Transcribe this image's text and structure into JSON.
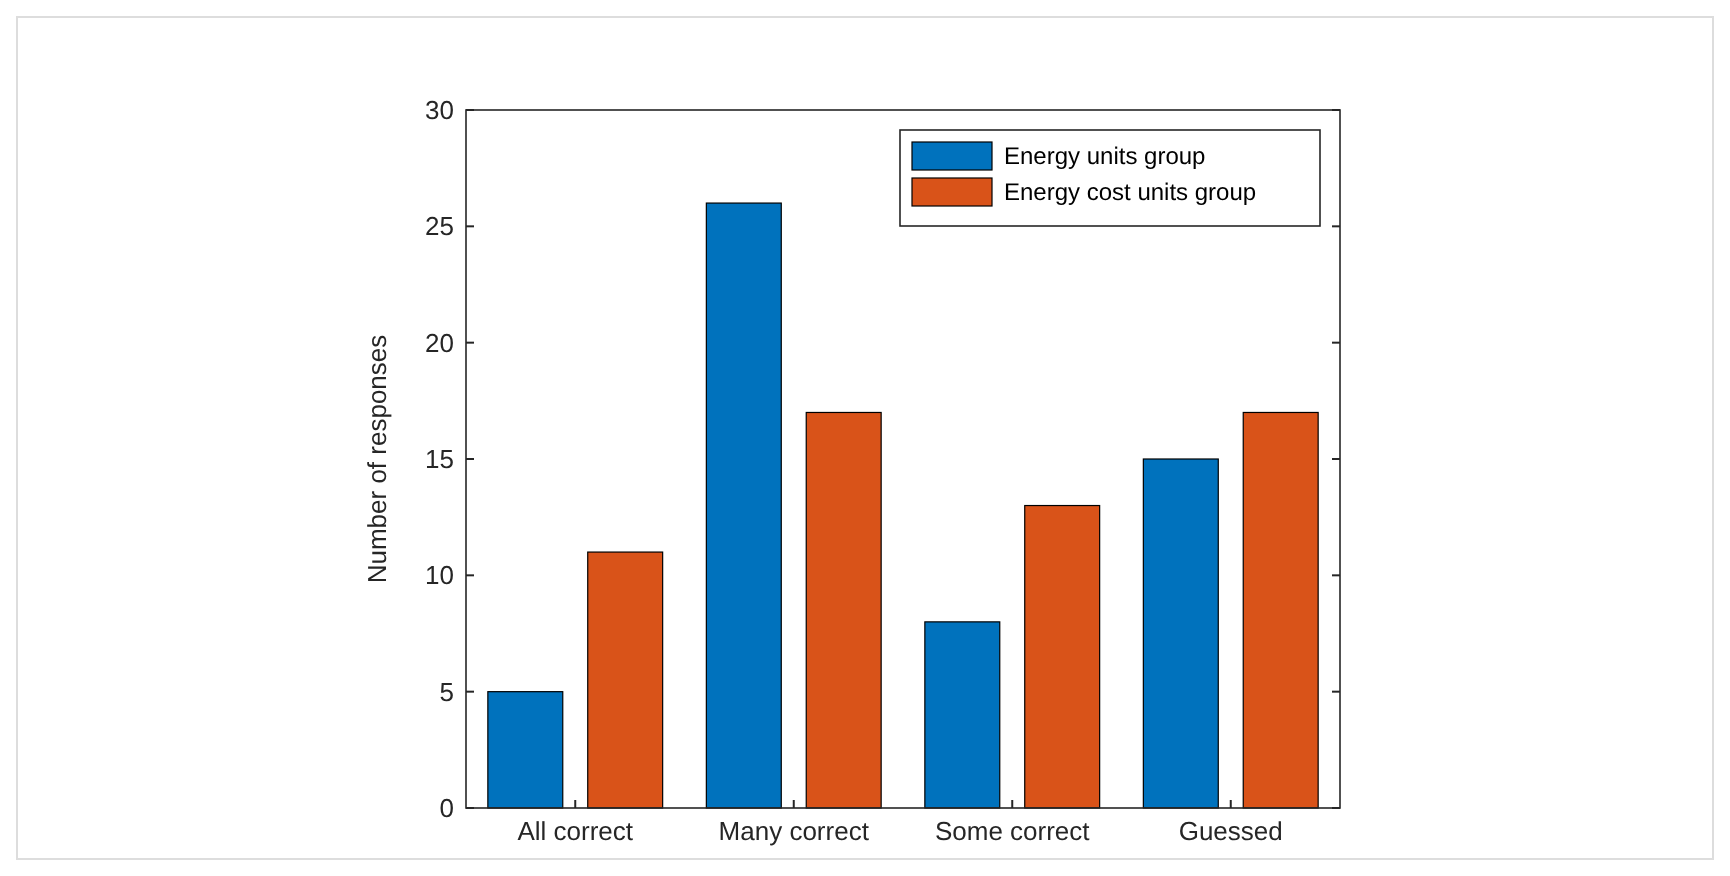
{
  "chart_data": {
    "type": "bar",
    "ylabel": "Number of responses",
    "categories": [
      "All correct",
      "Many correct",
      "Some correct",
      "Guessed"
    ],
    "series": [
      {
        "name": "Energy units group",
        "color": "#0072bd",
        "values": [
          5,
          26,
          8,
          15
        ]
      },
      {
        "name": "Energy cost units group",
        "color": "#d95319",
        "values": [
          11,
          17,
          13,
          17
        ]
      }
    ],
    "ylim": [
      0,
      30
    ],
    "yticks": [
      0,
      5,
      10,
      15,
      20,
      25,
      30
    ],
    "legend": "top right",
    "grid": false
  }
}
